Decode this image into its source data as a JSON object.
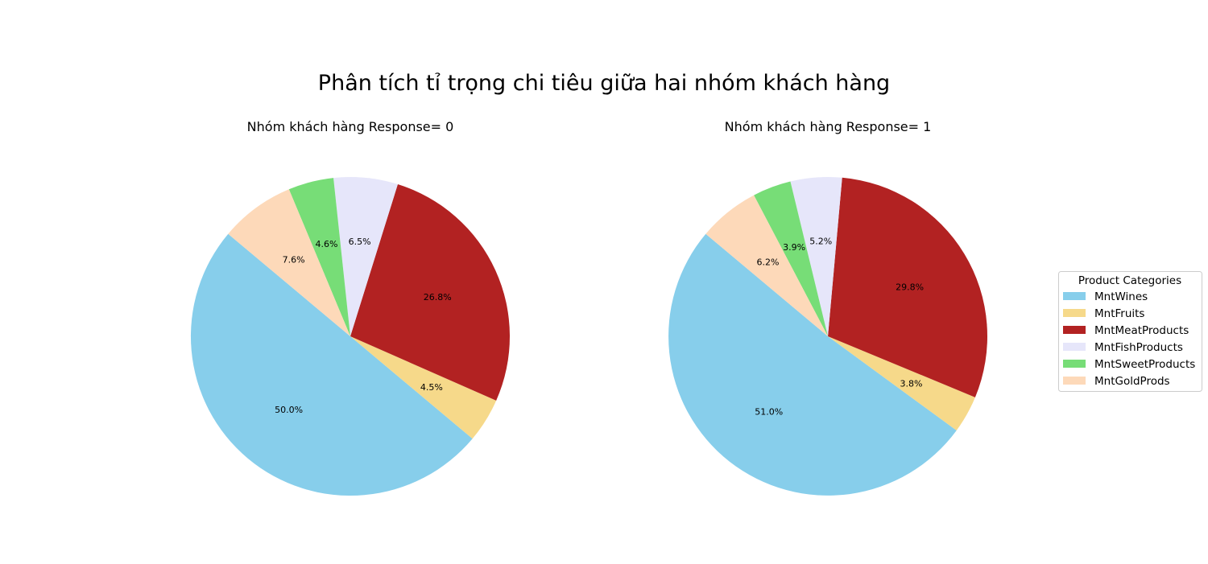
{
  "figure": {
    "title": "Phân tích tỉ trọng chi tiêu giữa hai nhóm khách hàng"
  },
  "legend": {
    "title": "Product Categories",
    "placement": "right",
    "items": [
      "MntWines",
      "MntFruits",
      "MntMeatProducts",
      "MntFishProducts",
      "MntSweetProducts",
      "MntGoldProds"
    ]
  },
  "colors": {
    "MntWines": "#87ceeb",
    "MntFruits": "#f6d98a",
    "MntMeatProducts": "#b22222",
    "MntFishProducts": "#e6e6fa",
    "MntSweetProducts": "#77dd77",
    "MntGoldProds": "#fdd9b9"
  },
  "chart_data": [
    {
      "type": "pie",
      "title": "Nhóm khách hàng Response= 0",
      "start_angle_deg": 140,
      "labels": [
        "MntWines",
        "MntFruits",
        "MntMeatProducts",
        "MntFishProducts",
        "MntSweetProducts",
        "MntGoldProds"
      ],
      "values": [
        50.0,
        4.5,
        26.8,
        6.5,
        4.6,
        7.6
      ],
      "value_labels": [
        "50.0%",
        "4.5%",
        "26.8%",
        "6.5%",
        "4.6%",
        "7.6%"
      ]
    },
    {
      "type": "pie",
      "title": "Nhóm khách hàng Response= 1",
      "start_angle_deg": 140,
      "labels": [
        "MntWines",
        "MntFruits",
        "MntMeatProducts",
        "MntFishProducts",
        "MntSweetProducts",
        "MntGoldProds"
      ],
      "values": [
        51.0,
        3.8,
        29.8,
        5.2,
        3.9,
        6.2
      ],
      "value_labels": [
        "51.0%",
        "3.8%",
        "29.8%",
        "5.2%",
        "3.9%",
        "6.2%"
      ]
    }
  ]
}
